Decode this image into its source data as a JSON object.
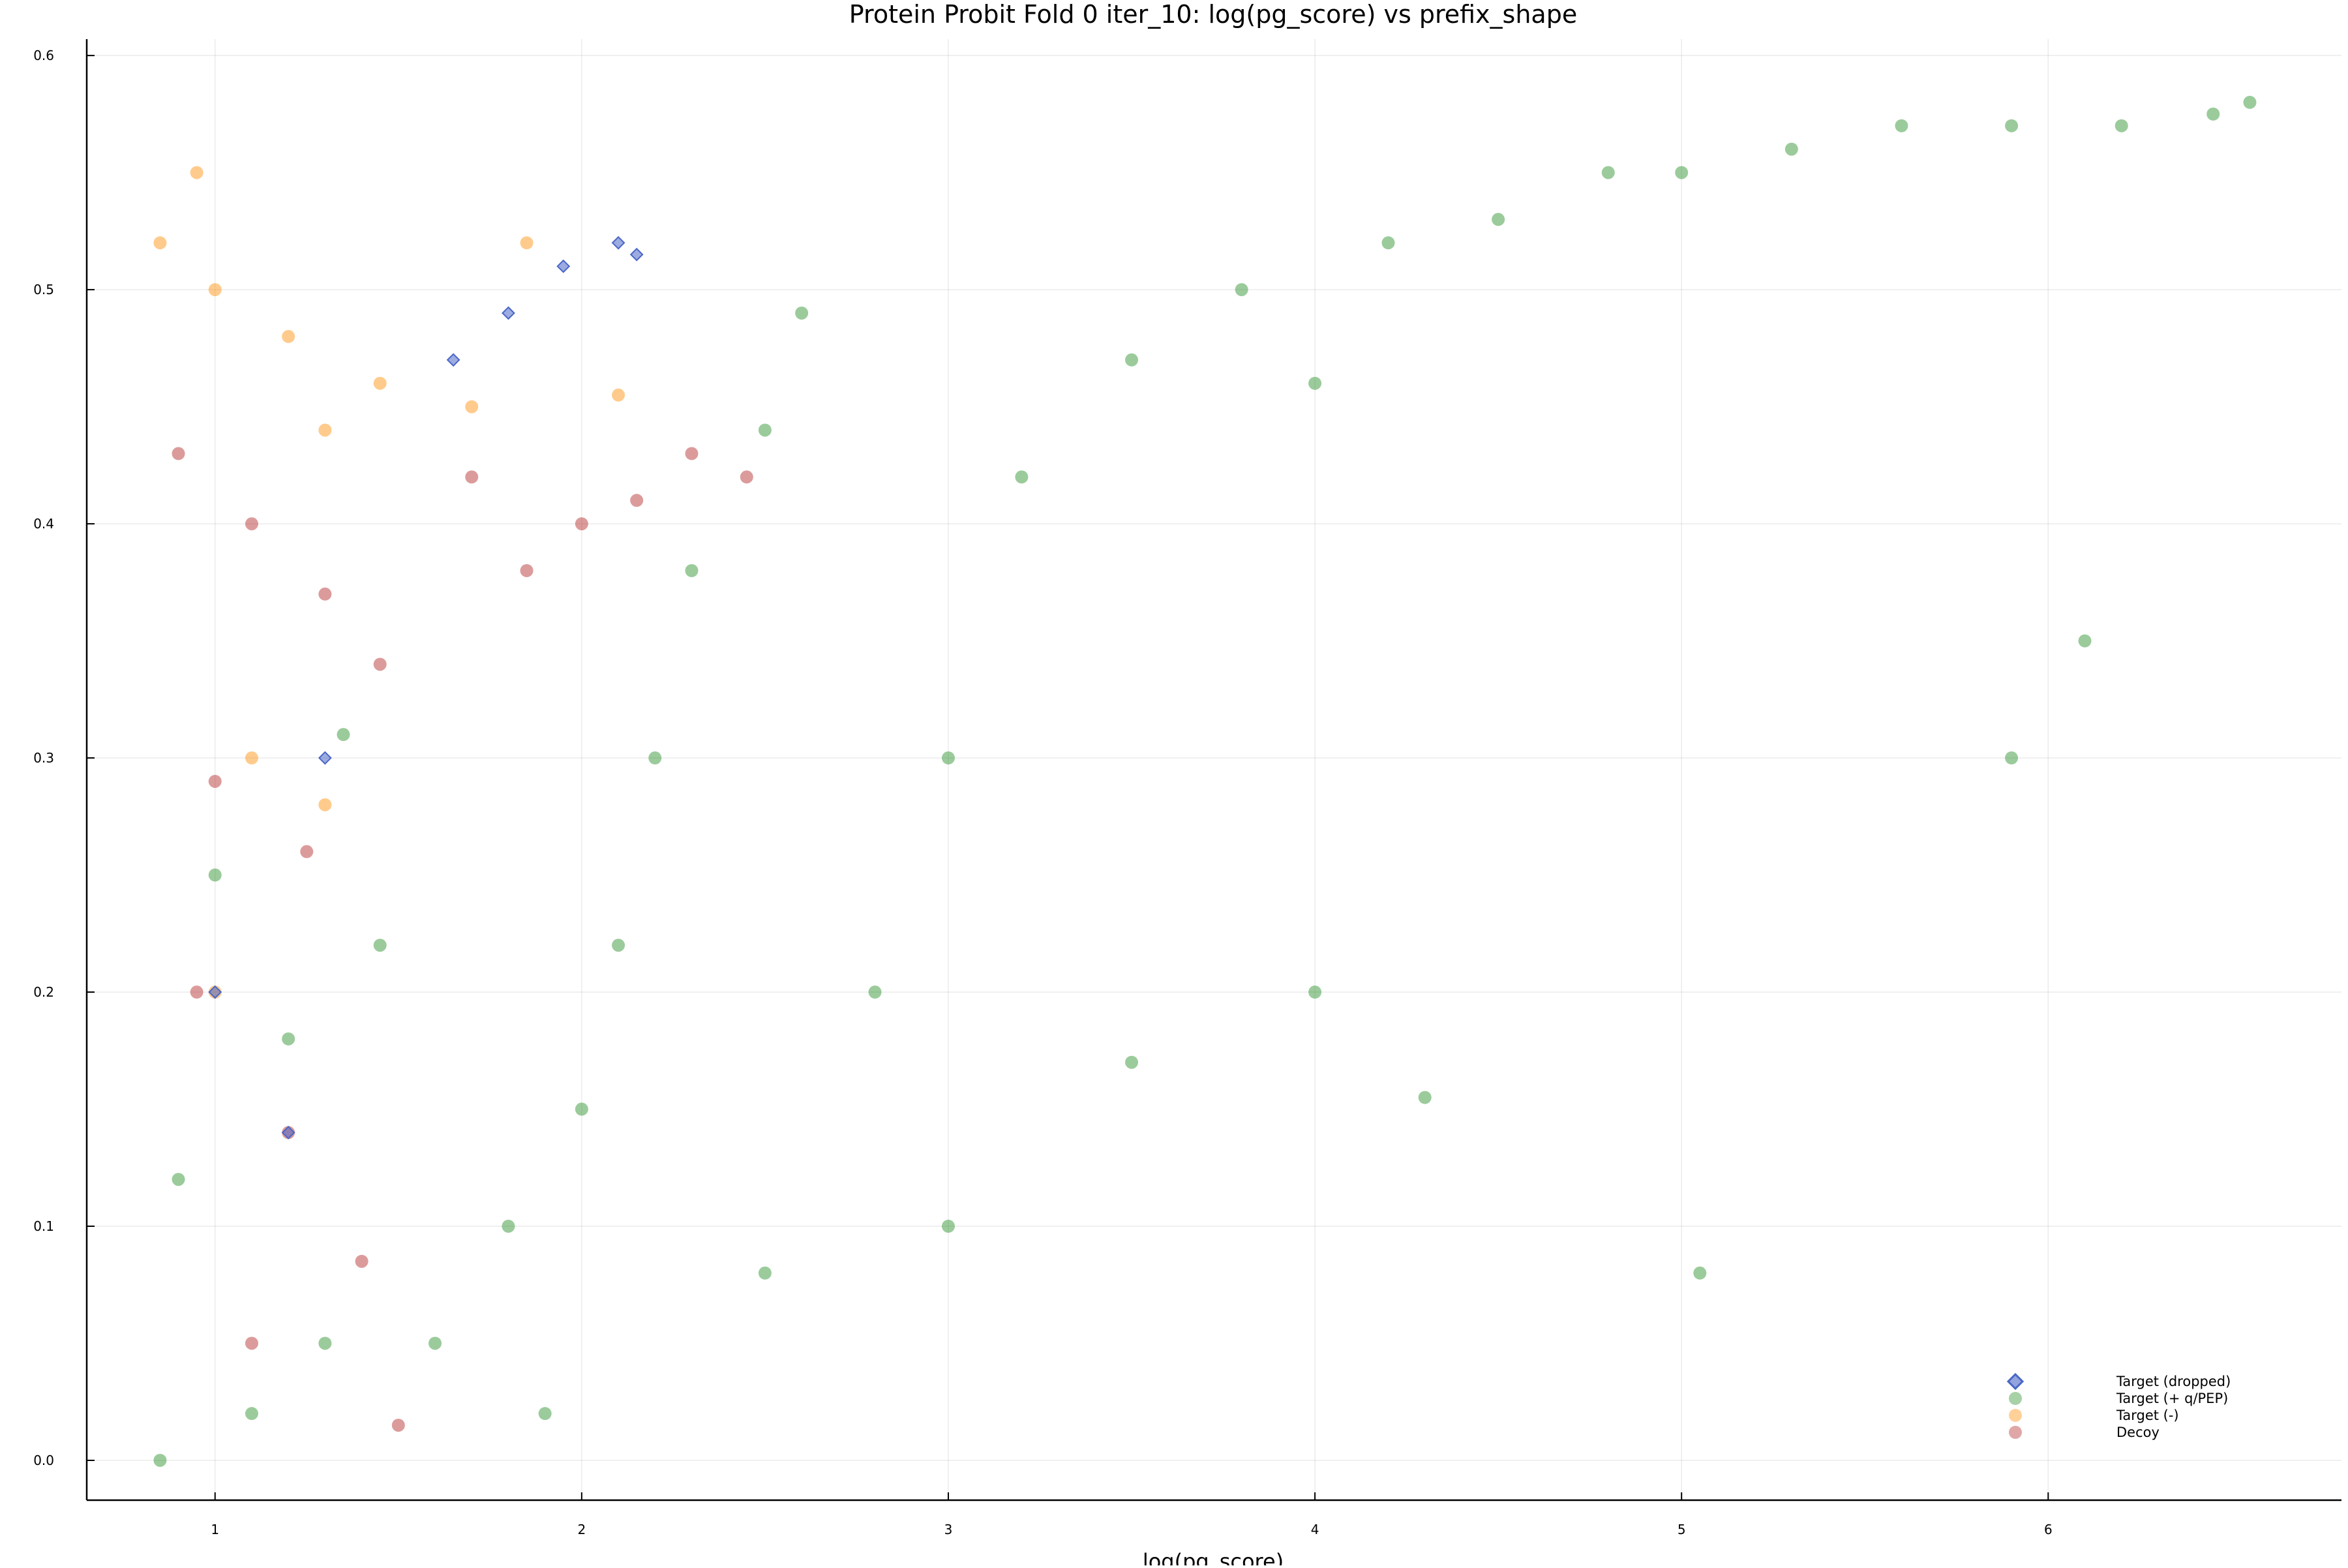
{
  "chart_data": {
    "type": "scatter",
    "title": "Protein Probit Fold 0 iter_10: log(pg_score) vs prefix_shape",
    "xlabel": "log(pg_score)",
    "ylabel": "",
    "xlim": [
      0.65,
      6.8
    ],
    "ylim": [
      -0.017,
      0.607
    ],
    "x_ticks": [
      1,
      2,
      3,
      4,
      5,
      6
    ],
    "y_ticks": [
      0.0,
      0.1,
      0.2,
      0.3,
      0.4,
      0.5,
      0.6
    ],
    "x_tick_labels": [
      "1",
      "2",
      "3",
      "4",
      "5",
      "6"
    ],
    "y_tick_labels": [
      "0.0",
      "0.1",
      "0.2",
      "0.3",
      "0.4",
      "0.5",
      "0.6"
    ],
    "grid": true,
    "legend_position": "bottom-right",
    "legend": [
      {
        "label": "Target (dropped)",
        "color": "#4a66c6",
        "marker": "diamond"
      },
      {
        "label": "Target (+ q/PEP)",
        "color": "#228b22",
        "marker": "circle"
      },
      {
        "label": "Target (-)",
        "color": "#ff8c00",
        "marker": "circle"
      },
      {
        "label": "Decoy",
        "color": "#b22222",
        "marker": "circle"
      }
    ],
    "series": [
      {
        "name": "Target (+ q/PEP)",
        "color": "#228b22",
        "marker": "circle",
        "points": [
          [
            0.85,
            0.0
          ],
          [
            1.1,
            0.02
          ],
          [
            1.3,
            0.05
          ],
          [
            0.9,
            0.12
          ],
          [
            1.2,
            0.18
          ],
          [
            1.45,
            0.22
          ],
          [
            1.0,
            0.25
          ],
          [
            1.35,
            0.31
          ],
          [
            1.6,
            0.05
          ],
          [
            1.8,
            0.1
          ],
          [
            1.9,
            0.02
          ],
          [
            2.0,
            0.15
          ],
          [
            2.1,
            0.22
          ],
          [
            2.2,
            0.3
          ],
          [
            2.3,
            0.38
          ],
          [
            2.5,
            0.44
          ],
          [
            2.6,
            0.49
          ],
          [
            2.8,
            0.2
          ],
          [
            3.0,
            0.3
          ],
          [
            3.2,
            0.42
          ],
          [
            3.5,
            0.47
          ],
          [
            3.8,
            0.5
          ],
          [
            4.0,
            0.46
          ],
          [
            4.2,
            0.52
          ],
          [
            4.5,
            0.53
          ],
          [
            4.8,
            0.55
          ],
          [
            5.0,
            0.55
          ],
          [
            5.3,
            0.56
          ],
          [
            5.6,
            0.57
          ],
          [
            5.9,
            0.57
          ],
          [
            6.2,
            0.57
          ],
          [
            6.45,
            0.575
          ],
          [
            6.55,
            0.58
          ],
          [
            2.5,
            0.08
          ],
          [
            3.0,
            0.1
          ],
          [
            3.5,
            0.17
          ],
          [
            4.0,
            0.2
          ],
          [
            4.3,
            0.155
          ],
          [
            5.05,
            0.08
          ],
          [
            5.9,
            0.3
          ],
          [
            6.1,
            0.35
          ]
        ]
      },
      {
        "name": "Target (-)",
        "color": "#ff8c00",
        "marker": "circle",
        "points": [
          [
            0.85,
            0.52
          ],
          [
            1.0,
            0.5
          ],
          [
            1.2,
            0.48
          ],
          [
            1.45,
            0.46
          ],
          [
            0.95,
            0.55
          ],
          [
            1.3,
            0.44
          ],
          [
            1.7,
            0.45
          ],
          [
            1.85,
            0.52
          ],
          [
            2.1,
            0.455
          ],
          [
            1.1,
            0.3
          ],
          [
            1.3,
            0.28
          ],
          [
            1.0,
            0.2
          ]
        ]
      },
      {
        "name": "Decoy",
        "color": "#b22222",
        "marker": "circle",
        "points": [
          [
            0.9,
            0.43
          ],
          [
            1.1,
            0.4
          ],
          [
            1.3,
            0.37
          ],
          [
            1.45,
            0.34
          ],
          [
            1.0,
            0.29
          ],
          [
            1.25,
            0.26
          ],
          [
            0.95,
            0.2
          ],
          [
            1.2,
            0.14
          ],
          [
            1.4,
            0.085
          ],
          [
            1.1,
            0.05
          ],
          [
            1.5,
            0.015
          ],
          [
            1.7,
            0.42
          ],
          [
            1.85,
            0.38
          ],
          [
            2.0,
            0.4
          ],
          [
            2.15,
            0.41
          ],
          [
            2.3,
            0.43
          ],
          [
            2.45,
            0.42
          ]
        ]
      },
      {
        "name": "Target (dropped)",
        "color": "#4a66c6",
        "marker": "diamond",
        "points": [
          [
            1.65,
            0.47
          ],
          [
            1.8,
            0.49
          ],
          [
            1.95,
            0.51
          ],
          [
            2.1,
            0.52
          ],
          [
            2.15,
            0.515
          ],
          [
            1.3,
            0.3
          ],
          [
            1.0,
            0.2
          ],
          [
            1.2,
            0.14
          ]
        ]
      }
    ]
  }
}
